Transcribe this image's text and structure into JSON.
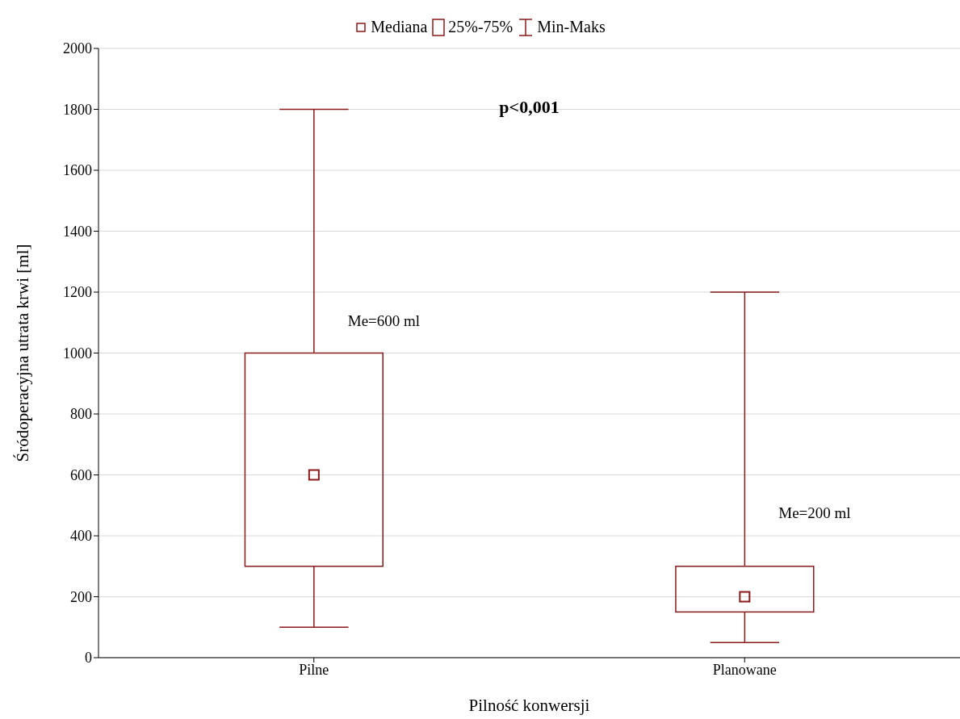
{
  "chart_data": {
    "type": "box",
    "categories": [
      "Pilne",
      "Planowane"
    ],
    "color": "#8b1a1a",
    "boxes": [
      {
        "low": 100,
        "q1": 300,
        "median": 600,
        "q3": 1000,
        "high": 1800
      },
      {
        "low": 50,
        "q1": 150,
        "median": 200,
        "q3": 300,
        "high": 1200
      }
    ],
    "xlabel": "Pilność konwersji",
    "ylabel": "Śródoperacyjna utrata krwi [ml]",
    "ylim": [
      0,
      2000
    ],
    "yticks": [
      0,
      200,
      400,
      600,
      800,
      1000,
      1200,
      1400,
      1600,
      1800,
      2000
    ],
    "grid": "y",
    "annotations": [
      "Mediana",
      "25%-75%",
      "Min-Maks",
      "p<0,001",
      {
        "text": "Me=600 ml",
        "x": "Pilne",
        "y": 1100
      },
      {
        "text": "Me=200 ml",
        "x": "Planowane",
        "y": 470
      }
    ]
  }
}
